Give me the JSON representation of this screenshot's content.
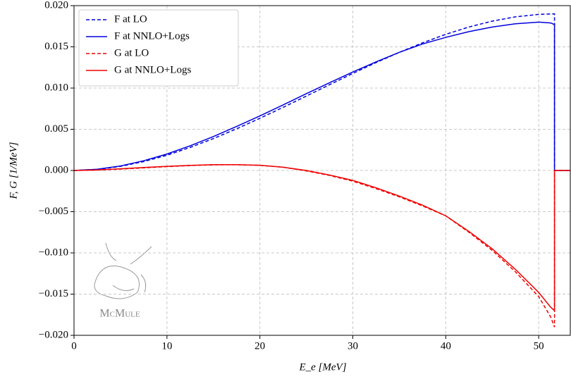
{
  "chart_data": {
    "type": "line",
    "x_label": "E_e [MeV]",
    "y_label": "F, G [1/MeV]",
    "annotations": [
      "McMule"
    ],
    "x": [
      0,
      2.5,
      5,
      7.5,
      10,
      12.5,
      15,
      17.5,
      20,
      22.5,
      25,
      27.5,
      30,
      32.5,
      35,
      37.5,
      40,
      42.5,
      45,
      47.5,
      50,
      51.3,
      51.7,
      51.7,
      53.4
    ],
    "series": [
      {
        "name": "F at LO",
        "color": "#0000dd",
        "dash": true,
        "values": [
          0,
          0.00013,
          0.0005,
          0.00108,
          0.00185,
          0.0028,
          0.00387,
          0.00506,
          0.00633,
          0.00766,
          0.00903,
          0.01041,
          0.01177,
          0.01309,
          0.01433,
          0.01549,
          0.01652,
          0.01741,
          0.01812,
          0.01864,
          0.01894,
          0.01899,
          0.019,
          0,
          0
        ]
      },
      {
        "name": "F at NNLO+Logs",
        "color": "#0000dd",
        "dash": false,
        "values": [
          0,
          0.00015,
          0.00055,
          0.00118,
          0.002,
          0.003,
          0.00412,
          0.00535,
          0.00662,
          0.00795,
          0.00932,
          0.01065,
          0.01195,
          0.01318,
          0.01433,
          0.01535,
          0.01615,
          0.01685,
          0.0174,
          0.0178,
          0.018,
          0.0179,
          0.0177,
          0,
          0
        ]
      },
      {
        "name": "G at LO",
        "color": "#ee0000",
        "dash": true,
        "values": [
          0,
          5e-05,
          0.00017,
          0.00032,
          0.00047,
          0.0006,
          0.00068,
          0.0007,
          0.00062,
          0.0004,
          -5e-05,
          -0.0006,
          -0.0013,
          -0.0022,
          -0.0032,
          -0.0043,
          -0.0055,
          -0.0075,
          -0.0097,
          -0.0123,
          -0.0153,
          -0.0178,
          -0.019,
          0,
          0
        ]
      },
      {
        "name": "G at NNLO+Logs",
        "color": "#ee0000",
        "dash": false,
        "values": [
          0,
          6e-05,
          0.0002,
          0.00036,
          0.0005,
          0.00062,
          0.0007,
          0.00071,
          0.00063,
          0.0004,
          0,
          -0.00055,
          -0.0012,
          -0.0021,
          -0.0031,
          -0.0042,
          -0.0055,
          -0.0074,
          -0.0095,
          -0.012,
          -0.0148,
          -0.0166,
          -0.017,
          0,
          0
        ]
      }
    ],
    "xlim": [
      0,
      53.4
    ],
    "ylim": [
      -0.02,
      0.02
    ],
    "xticks": [
      0,
      10,
      20,
      30,
      40,
      50
    ],
    "yticks": [
      {
        "value": -0.02,
        "label": "−0.020"
      },
      {
        "value": -0.015,
        "label": "−0.015"
      },
      {
        "value": -0.01,
        "label": "−0.010"
      },
      {
        "value": -0.005,
        "label": "−0.005"
      },
      {
        "value": 0,
        "label": "0.000"
      },
      {
        "value": 0.005,
        "label": "0.005"
      },
      {
        "value": 0.01,
        "label": "0.010"
      },
      {
        "value": 0.015,
        "label": "0.015"
      },
      {
        "value": 0.02,
        "label": "0.020"
      }
    ],
    "grid": true,
    "legend": "upper-left"
  }
}
